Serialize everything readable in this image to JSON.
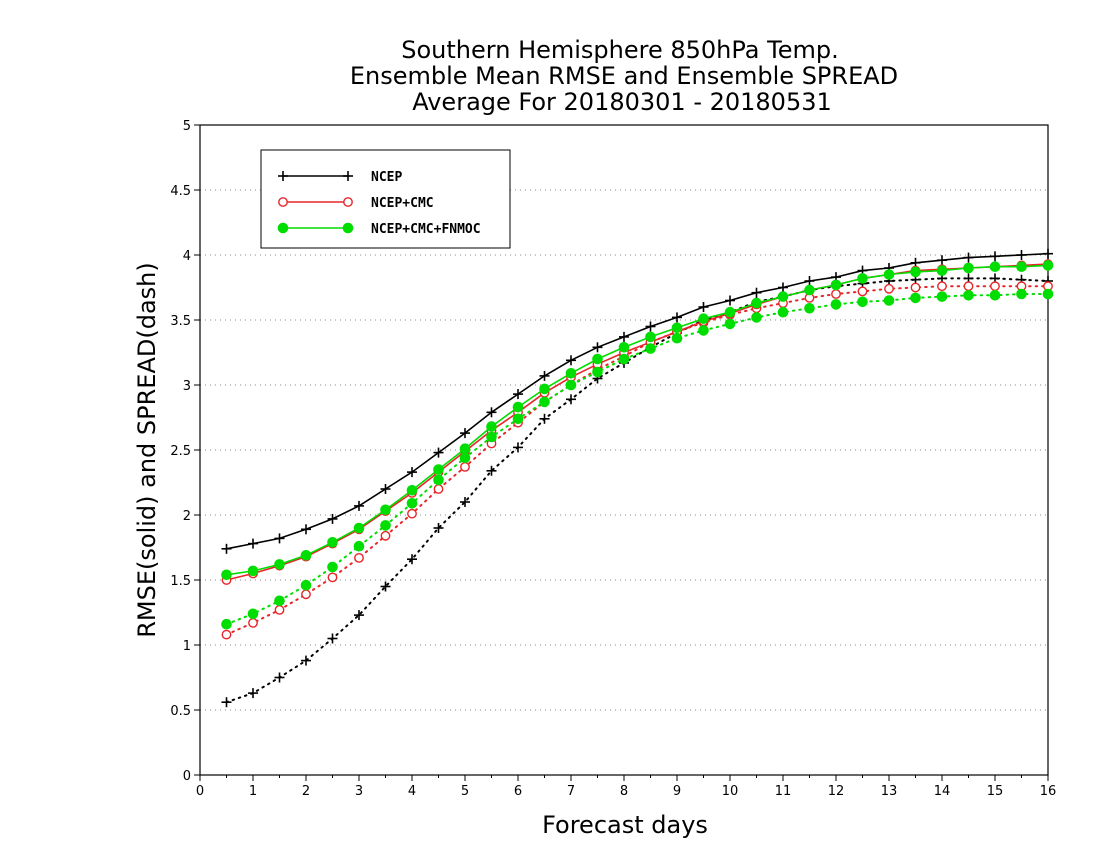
{
  "chart_data": {
    "type": "line",
    "title": [
      "Southern Hemisphere 850hPa Temp.",
      "Ensemble Mean RMSE and Ensemble SPREAD",
      "Average For 20180301 - 20180531"
    ],
    "xlabel": "Forecast days",
    "ylabel": "RMSE(solid) and SPREAD(dash)",
    "xlim": [
      0,
      16
    ],
    "ylim": [
      0,
      5
    ],
    "xticks": [
      0,
      1,
      2,
      3,
      4,
      5,
      6,
      7,
      8,
      9,
      10,
      11,
      12,
      13,
      14,
      15,
      16
    ],
    "yticks": [
      0,
      0.5,
      1,
      1.5,
      2,
      2.5,
      3,
      3.5,
      4,
      4.5,
      5
    ],
    "ytick_labels": [
      "0",
      "0.5",
      "1",
      "1.5",
      "2",
      "2.5",
      "3",
      "3.5",
      "4",
      "4.5",
      "5"
    ],
    "grid": "horizontal dotted",
    "legend_position": "top-left",
    "x": [
      0.5,
      1,
      1.5,
      2,
      2.5,
      3,
      3.5,
      4,
      4.5,
      5,
      5.5,
      6,
      6.5,
      7,
      7.5,
      8,
      8.5,
      9,
      9.5,
      10,
      10.5,
      11,
      11.5,
      12,
      12.5,
      13,
      13.5,
      14,
      14.5,
      15,
      15.5,
      16
    ],
    "series": [
      {
        "name": "NCEP",
        "color": "#000000",
        "marker": "plus",
        "rmse": [
          1.74,
          1.78,
          1.82,
          1.89,
          1.97,
          2.07,
          2.2,
          2.33,
          2.48,
          2.63,
          2.79,
          2.93,
          3.07,
          3.19,
          3.29,
          3.37,
          3.45,
          3.52,
          3.6,
          3.65,
          3.71,
          3.75,
          3.8,
          3.83,
          3.88,
          3.9,
          3.94,
          3.96,
          3.98,
          3.99,
          4.0,
          4.01
        ],
        "spread": [
          0.56,
          0.63,
          0.75,
          0.88,
          1.05,
          1.23,
          1.45,
          1.66,
          1.9,
          2.1,
          2.34,
          2.52,
          2.74,
          2.89,
          3.05,
          3.17,
          3.29,
          3.4,
          3.5,
          3.56,
          3.64,
          3.68,
          3.73,
          3.76,
          3.78,
          3.8,
          3.81,
          3.82,
          3.82,
          3.82,
          3.81,
          3.8
        ]
      },
      {
        "name": "NCEP+CMC",
        "color": "#e8262a",
        "marker": "open-circle",
        "rmse": [
          1.5,
          1.55,
          1.61,
          1.68,
          1.78,
          1.89,
          2.03,
          2.17,
          2.33,
          2.49,
          2.65,
          2.79,
          2.94,
          3.06,
          3.16,
          3.25,
          3.33,
          3.41,
          3.49,
          3.55,
          3.62,
          3.68,
          3.73,
          3.77,
          3.82,
          3.85,
          3.88,
          3.89,
          3.9,
          3.91,
          3.92,
          3.93
        ],
        "spread": [
          1.08,
          1.17,
          1.27,
          1.39,
          1.52,
          1.67,
          1.84,
          2.01,
          2.2,
          2.37,
          2.55,
          2.71,
          2.87,
          3.0,
          3.12,
          3.22,
          3.33,
          3.41,
          3.48,
          3.54,
          3.59,
          3.63,
          3.67,
          3.7,
          3.72,
          3.74,
          3.75,
          3.76,
          3.76,
          3.76,
          3.76,
          3.76
        ]
      },
      {
        "name": "NCEP+CMC+FNMOC",
        "color": "#00dd00",
        "marker": "filled-circle",
        "rmse": [
          1.54,
          1.57,
          1.62,
          1.69,
          1.79,
          1.9,
          2.04,
          2.19,
          2.35,
          2.51,
          2.68,
          2.83,
          2.97,
          3.09,
          3.2,
          3.29,
          3.37,
          3.44,
          3.51,
          3.56,
          3.63,
          3.68,
          3.73,
          3.77,
          3.82,
          3.85,
          3.87,
          3.88,
          3.9,
          3.91,
          3.91,
          3.92
        ],
        "spread": [
          1.16,
          1.24,
          1.34,
          1.46,
          1.6,
          1.76,
          1.92,
          2.09,
          2.27,
          2.44,
          2.6,
          2.74,
          2.87,
          3.0,
          3.1,
          3.2,
          3.28,
          3.36,
          3.42,
          3.47,
          3.52,
          3.56,
          3.59,
          3.62,
          3.64,
          3.65,
          3.67,
          3.68,
          3.69,
          3.69,
          3.7,
          3.7
        ]
      }
    ]
  }
}
